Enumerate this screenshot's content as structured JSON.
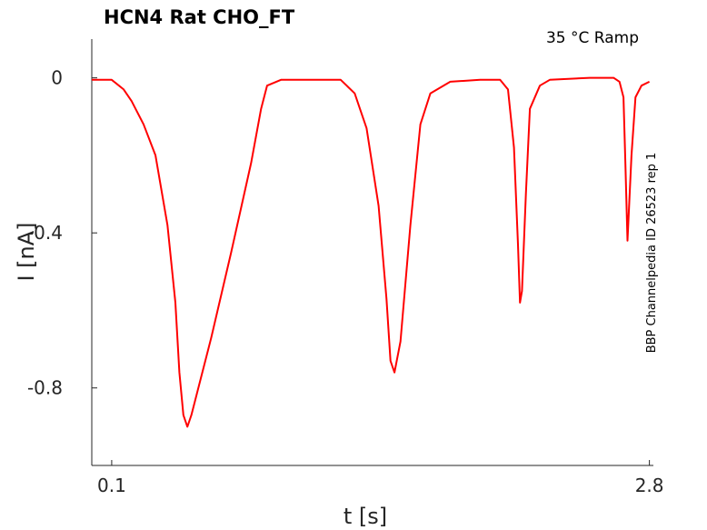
{
  "chart_data": {
    "type": "line",
    "title": "HCN4  Rat  CHO_FT",
    "condition": "35 °C  Ramp",
    "side_label": "BBP Channelpedia ID 26523 rep 1",
    "xlabel": "t [s]",
    "ylabel": "I [nA]",
    "xlim": [
      0.0,
      2.82
    ],
    "ylim": [
      -1.0,
      0.1
    ],
    "xticks": [
      0.1,
      2.8
    ],
    "xtick_labels": [
      "0.1",
      "2.8"
    ],
    "yticks": [
      0,
      -0.4,
      -0.8
    ],
    "ytick_labels": [
      "0",
      "-0.4",
      "-0.8"
    ],
    "grid": false,
    "series": [
      {
        "color": "#ff0000",
        "x": [
          0.0,
          0.1,
          0.16,
          0.2,
          0.26,
          0.32,
          0.38,
          0.42,
          0.44,
          0.46,
          0.48,
          0.5,
          0.6,
          0.7,
          0.8,
          0.85,
          0.88,
          0.95,
          1.1,
          1.25,
          1.32,
          1.38,
          1.44,
          1.48,
          1.5,
          1.52,
          1.55,
          1.6,
          1.65,
          1.7,
          1.8,
          1.95,
          2.05,
          2.09,
          2.12,
          2.14,
          2.15,
          2.16,
          2.18,
          2.2,
          2.25,
          2.3,
          2.5,
          2.62,
          2.65,
          2.67,
          2.68,
          2.69,
          2.71,
          2.73,
          2.76,
          2.8
        ],
        "y": [
          -0.005,
          -0.005,
          -0.03,
          -0.06,
          -0.12,
          -0.2,
          -0.38,
          -0.58,
          -0.76,
          -0.87,
          -0.9,
          -0.87,
          -0.67,
          -0.45,
          -0.22,
          -0.08,
          -0.02,
          -0.005,
          -0.005,
          -0.005,
          -0.04,
          -0.13,
          -0.33,
          -0.57,
          -0.73,
          -0.76,
          -0.68,
          -0.38,
          -0.12,
          -0.04,
          -0.01,
          -0.005,
          -0.005,
          -0.03,
          -0.18,
          -0.43,
          -0.58,
          -0.55,
          -0.3,
          -0.08,
          -0.02,
          -0.005,
          -0.0,
          -0.0,
          -0.01,
          -0.05,
          -0.23,
          -0.42,
          -0.2,
          -0.05,
          -0.02,
          -0.01
        ]
      }
    ]
  }
}
